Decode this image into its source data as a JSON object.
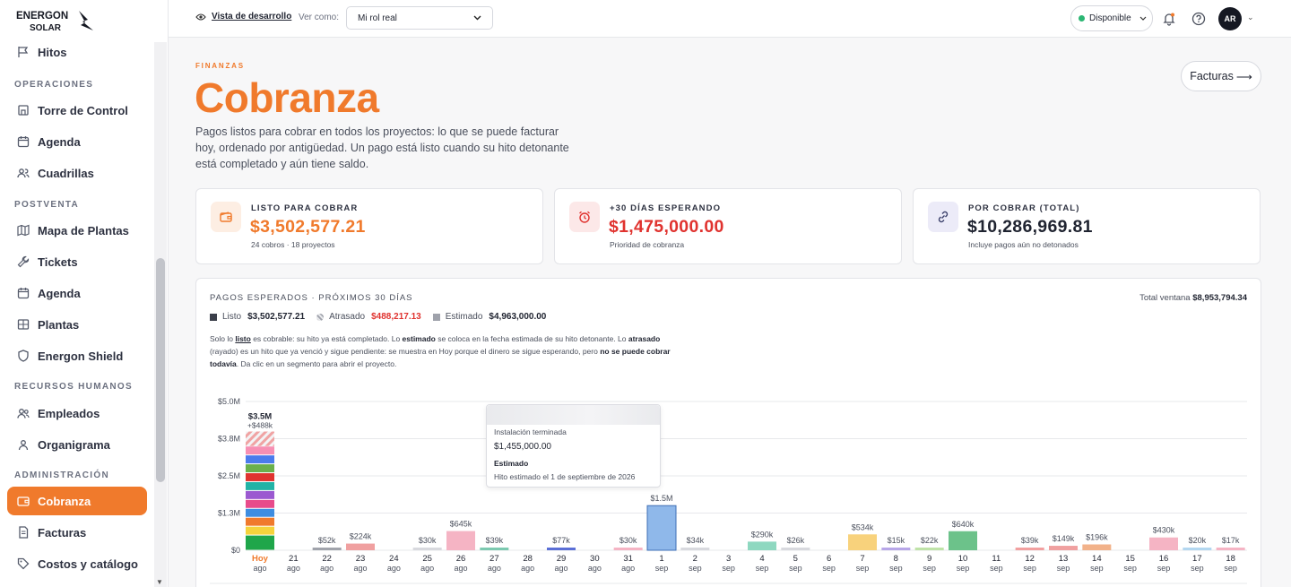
{
  "brand": {
    "line1": "ENERGON",
    "line2": "SOLAR"
  },
  "sidebar": {
    "sections": [
      {
        "label": "OPERACIONES"
      },
      {
        "label": "POSTVENTA"
      },
      {
        "label": "RECURSOS HUMANOS"
      },
      {
        "label": "ADMINISTRACIÓN"
      }
    ],
    "items": [
      {
        "label": "Hitos",
        "icon": "flag-icon"
      },
      {
        "label": "Torre de Control",
        "icon": "tower-icon"
      },
      {
        "label": "Agenda",
        "icon": "calendar-icon"
      },
      {
        "label": "Cuadrillas",
        "icon": "crew-icon"
      },
      {
        "label": "Mapa de Plantas",
        "icon": "map-icon"
      },
      {
        "label": "Tickets",
        "icon": "wrench-icon"
      },
      {
        "label": "Agenda",
        "icon": "calendar-icon"
      },
      {
        "label": "Plantas",
        "icon": "plant-icon"
      },
      {
        "label": "Energon Shield",
        "icon": "shield-icon"
      },
      {
        "label": "Empleados",
        "icon": "users-icon"
      },
      {
        "label": "Organigrama",
        "icon": "org-icon"
      },
      {
        "label": "Cobranza",
        "icon": "wallet-icon",
        "active": true
      },
      {
        "label": "Facturas",
        "icon": "invoice-icon"
      },
      {
        "label": "Costos y catálogo",
        "icon": "tag-icon"
      }
    ]
  },
  "topbar": {
    "dev_view": "Vista de desarrollo",
    "view_as": "Ver como:",
    "role": "Mi rol real",
    "status": "Disponible",
    "avatar": "AR"
  },
  "header": {
    "eyebrow": "FINANZAS",
    "title": "Cobranza",
    "description": "Pagos listos para cobrar en todos los proyectos: lo que se puede facturar hoy, ordenado por antigüedad. Un pago está listo cuando su hito detonante está completado y aún tiene saldo.",
    "facturas_button": "Facturas",
    "facturas_arrow": "⟶"
  },
  "kpis": [
    {
      "label": "LISTO PARA COBRAR",
      "value": "$3,502,577.21",
      "sub": "24 cobros · 18 proyectos",
      "icon": "wallet-icon",
      "color": "#f07a2c",
      "bg": "#fdeee3"
    },
    {
      "label": "+30 DÍAS ESPERANDO",
      "value": "$1,475,000.00",
      "sub": "Prioridad de cobranza",
      "icon": "alarm-icon",
      "color": "#e0332f",
      "bg": "#fce8e8"
    },
    {
      "label": "POR COBRAR (TOTAL)",
      "value": "$10,286,969.81",
      "sub": "Incluye pagos aún no detonados",
      "icon": "link-icon",
      "color": "#1f2330",
      "bg": "#ecebf8"
    }
  ],
  "expected": {
    "title": "PAGOS ESPERADOS · PRÓXIMOS 30 DÍAS",
    "total_label": "Total ventana",
    "total_value": "$8,953,794.34",
    "legend": [
      {
        "label": "Listo",
        "value": "$3,502,577.21",
        "color": "#3b3f4a"
      },
      {
        "label": "Atrasado",
        "value": "$488,217.13",
        "color": "#c9cbd1",
        "value_color": "#e0332f"
      },
      {
        "label": "Estimado",
        "value": "$4,963,000.00",
        "color": "#9fa2ab"
      }
    ],
    "note": {
      "p1": "Solo lo ",
      "listo": "listo",
      "p2": " es cobrable: su hito ya está completado. Lo ",
      "estimado": "estimado",
      "p3": " se coloca en la fecha estimada de su hito detonante. Lo ",
      "atrasado": "atrasado",
      "p4": " (rayado) es un hito que ya venció y sigue pendiente: se muestra en Hoy porque el dinero se sigue esperando, pero ",
      "p5": "no se puede cobrar todavía",
      "p6": ". Da clic en un segmento para abrir el proyecto."
    },
    "tooltip": {
      "line1": "Instalación terminada",
      "value": "$1,455,000.00",
      "line2": "Estimado",
      "line3": "Hito estimado el 1 de septiembre de 2026"
    }
  },
  "chart_data": {
    "type": "bar",
    "stacked": true,
    "y_ticks": [
      "$5.0M",
      "$3.8M",
      "$2.5M",
      "$1.3M",
      "$0"
    ],
    "ylim": [
      0,
      5000000
    ],
    "grid": true,
    "categories": [
      [
        "Hoy",
        "ago"
      ],
      [
        "21",
        "ago"
      ],
      [
        "22",
        "ago"
      ],
      [
        "23",
        "ago"
      ],
      [
        "24",
        "ago"
      ],
      [
        "25",
        "ago"
      ],
      [
        "26",
        "ago"
      ],
      [
        "27",
        "ago"
      ],
      [
        "28",
        "ago"
      ],
      [
        "29",
        "ago"
      ],
      [
        "30",
        "ago"
      ],
      [
        "31",
        "ago"
      ],
      [
        "1",
        "sep"
      ],
      [
        "2",
        "sep"
      ],
      [
        "3",
        "sep"
      ],
      [
        "4",
        "sep"
      ],
      [
        "5",
        "sep"
      ],
      [
        "6",
        "sep"
      ],
      [
        "7",
        "sep"
      ],
      [
        "8",
        "sep"
      ],
      [
        "9",
        "sep"
      ],
      [
        "10",
        "sep"
      ],
      [
        "11",
        "sep"
      ],
      [
        "12",
        "sep"
      ],
      [
        "13",
        "sep"
      ],
      [
        "14",
        "sep"
      ],
      [
        "15",
        "sep"
      ],
      [
        "16",
        "sep"
      ],
      [
        "17",
        "sep"
      ],
      [
        "18",
        "sep"
      ]
    ],
    "values": [
      3990000,
      0,
      52000,
      224000,
      0,
      30000,
      645000,
      39000,
      0,
      77000,
      0,
      30000,
      1500000,
      34000,
      0,
      290000,
      26000,
      0,
      534000,
      15000,
      22000,
      640000,
      0,
      39000,
      149000,
      196000,
      0,
      430000,
      20000,
      17000
    ],
    "labels": [
      "$3.5M",
      "",
      "$52k",
      "$224k",
      "",
      "$30k",
      "$645k",
      "$39k",
      "",
      "$77k",
      "",
      "$30k",
      "$1.5M",
      "$34k",
      "",
      "$290k",
      "$26k",
      "",
      "$534k",
      "$15k",
      "$22k",
      "$640k",
      "",
      "$39k",
      "$149k",
      "$196k",
      "",
      "$430k",
      "$20k",
      "$17k"
    ],
    "today_extra_label": "+$488k",
    "today_ready": 3502577.21,
    "today_overdue": 488217.13,
    "colors": [
      "",
      "",
      "#a0a3ab",
      "#f0a0a0",
      "",
      "#d8d9de",
      "#f5b4c4",
      "#7cc9b0",
      "",
      "#5b6fd6",
      "",
      "#f5b4c4",
      "#8fb8ea",
      "#d8d9de",
      "",
      "#8ed8c0",
      "#d8d9de",
      "",
      "#f8d27c",
      "#b7a6e8",
      "#bfe3a8",
      "#6cc28a",
      "",
      "#f2a0a0",
      "#f0a0a0",
      "#f2b28a",
      "",
      "#f5b4c4",
      "#b3d7f0",
      "#f5b4c4"
    ],
    "today_stack_colors": [
      "#1fa64a",
      "#f5d33c",
      "#f07a2c",
      "#3f8de0",
      "#e84b8a",
      "#9b59d0",
      "#22b3a6",
      "#e0332f",
      "#6ab04c",
      "#4b7bec",
      "#f78fb3"
    ]
  }
}
